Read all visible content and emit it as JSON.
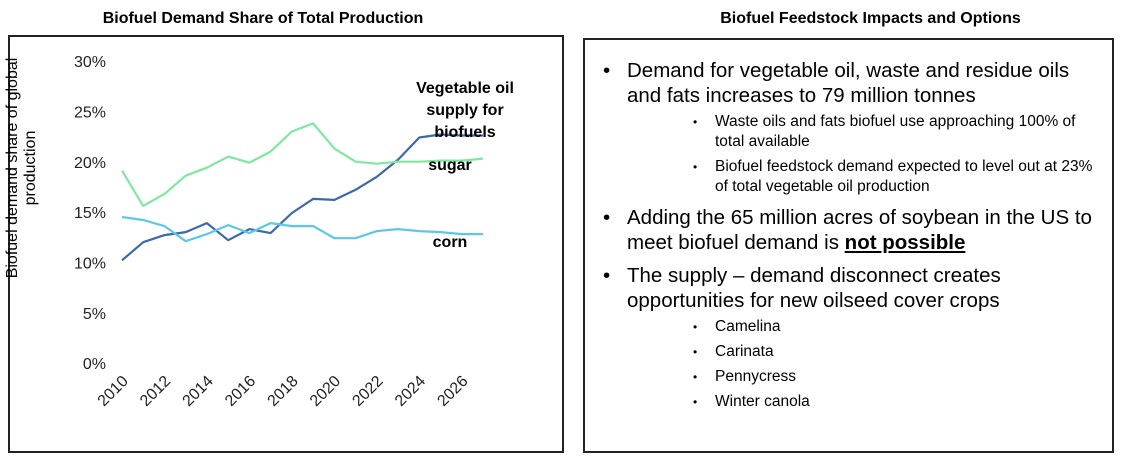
{
  "chart_data": {
    "type": "line",
    "title": "Biofuel Demand Share of Total Production",
    "y_label": "Biofuel demand share of global production",
    "x": [
      2010,
      2011,
      2012,
      2013,
      2014,
      2015,
      2016,
      2017,
      2018,
      2019,
      2020,
      2021,
      2022,
      2023,
      2024,
      2025,
      2026,
      2027
    ],
    "series": [
      {
        "name": "Vegetable oil supply for biofuels",
        "color": "#3b6aa8",
        "values": [
          10.4,
          12.2,
          12.9,
          13.2,
          14.1,
          12.4,
          13.5,
          13.1,
          15.1,
          16.5,
          16.4,
          17.4,
          18.7,
          20.4,
          22.6,
          22.9,
          22.8,
          22.8
        ]
      },
      {
        "name": "sugar",
        "color": "#7ee89e",
        "values": [
          19.3,
          15.8,
          17.0,
          18.8,
          19.6,
          20.7,
          20.1,
          21.2,
          23.2,
          24.0,
          21.5,
          20.2,
          20.0,
          20.2,
          20.2,
          20.3,
          20.3,
          20.5
        ]
      },
      {
        "name": "corn",
        "color": "#5cc8e8",
        "values": [
          14.7,
          14.4,
          13.8,
          12.3,
          13.0,
          13.9,
          13.1,
          14.1,
          13.8,
          13.8,
          12.6,
          12.6,
          13.3,
          13.5,
          13.3,
          13.2,
          13.0,
          13.0
        ]
      }
    ],
    "xlim": [
      2010,
      2027
    ],
    "xticks": [
      2010,
      2012,
      2014,
      2016,
      2018,
      2020,
      2022,
      2024,
      2026
    ],
    "ylim": [
      0,
      30
    ],
    "yticks": [
      {
        "value": 0,
        "label": "0%"
      },
      {
        "value": 5,
        "label": "5%"
      },
      {
        "value": 10,
        "label": "10%"
      },
      {
        "value": 15,
        "label": "15%"
      },
      {
        "value": 20,
        "label": "20%"
      },
      {
        "value": 25,
        "label": "25%"
      },
      {
        "value": 30,
        "label": "30%"
      }
    ],
    "grid": false
  },
  "panel": {
    "title": "Biofuel Feedstock Impacts and Options",
    "bullets": [
      {
        "text": "Demand for vegetable oil, waste and residue oils and fats increases to 79 million tonnes",
        "sub": [
          "Waste oils and fats biofuel use approaching 100% of total available",
          "Biofuel feedstock demand expected to level out at 23% of total vegetable oil production"
        ]
      },
      {
        "text": "Adding the 65 million acres of soybean in the US to meet biofuel demand is",
        "emphasis": "not possible"
      },
      {
        "text": "The supply – demand disconnect creates opportunities for new oilseed cover crops",
        "sub": [
          "Camelina",
          "Carinata",
          "Pennycress",
          "Winter canola"
        ]
      }
    ]
  }
}
